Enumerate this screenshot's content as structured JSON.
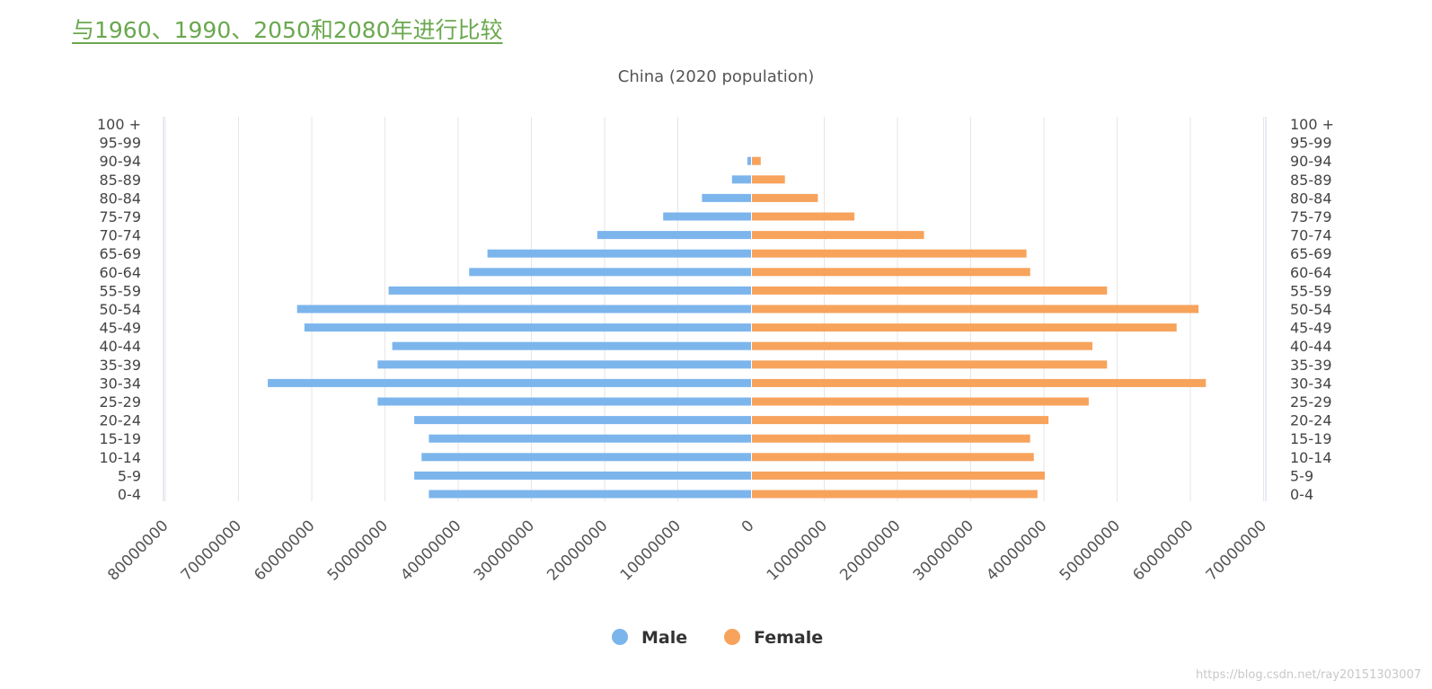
{
  "page": {
    "heading_link": "与1960、1990、2050和2080年进行比较",
    "watermark": "https://blog.csdn.net/ray20151303007"
  },
  "chart_data": {
    "type": "bar",
    "orientation": "horizontal",
    "title": "China (2020 population)",
    "categories": [
      "0-4",
      "5-9",
      "10-14",
      "15-19",
      "20-24",
      "25-29",
      "30-34",
      "35-39",
      "40-44",
      "45-49",
      "50-54",
      "55-59",
      "60-64",
      "65-69",
      "70-74",
      "75-79",
      "80-84",
      "85-89",
      "90-94",
      "95-99",
      "100 +"
    ],
    "series": [
      {
        "name": "Male",
        "color": "#7cb5ec",
        "values": [
          44000000,
          46000000,
          45000000,
          44000000,
          46000000,
          51000000,
          66000000,
          51000000,
          49000000,
          61000000,
          62000000,
          49500000,
          38500000,
          36000000,
          21000000,
          12000000,
          6700000,
          2600000,
          500000,
          0,
          0
        ]
      },
      {
        "name": "Female",
        "color": "#f7a35c",
        "values": [
          39000000,
          40000000,
          38500000,
          38000000,
          40500000,
          46000000,
          62000000,
          48500000,
          46500000,
          58000000,
          61000000,
          48500000,
          38000000,
          37500000,
          23500000,
          14000000,
          9000000,
          4500000,
          1200000,
          0,
          0
        ]
      }
    ],
    "x_ticks_left": [
      "80000000",
      "70000000",
      "60000000",
      "50000000",
      "40000000",
      "30000000",
      "20000000",
      "10000000"
    ],
    "x_ticks_right": [
      "0",
      "10000000",
      "20000000",
      "30000000",
      "40000000",
      "50000000",
      "60000000",
      "70000000"
    ],
    "xlim": [
      -80000000,
      70000000
    ],
    "grid": true,
    "legend": {
      "position": "bottom-center",
      "items": [
        "Male",
        "Female"
      ]
    }
  }
}
